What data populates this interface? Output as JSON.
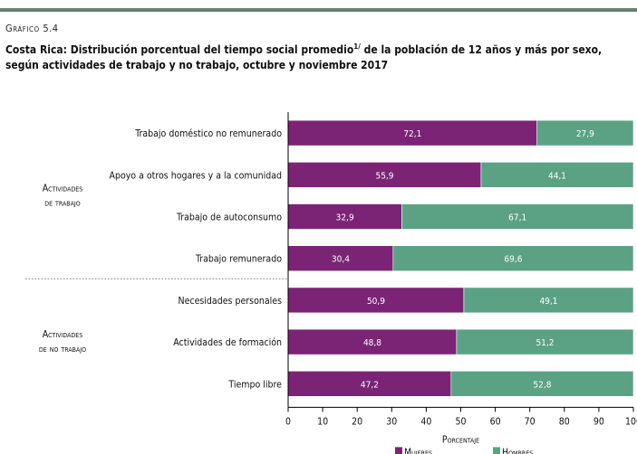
{
  "header": {
    "figure_label": "Gráfico 5.4",
    "title_main": "Costa Rica: Distribución porcentual del tiempo social promedio",
    "title_sup": "1/",
    "title_rest": " de la población de 12 años y más por sexo, según actividades de trabajo y no trabajo, octubre y noviembre 2017"
  },
  "colors": {
    "mujeres": "#7b2476",
    "hombres": "#5ba284",
    "accent_bar": "#6b7f73"
  },
  "chart_data": {
    "type": "bar",
    "orientation": "horizontal",
    "stacked": true,
    "categories": [
      "Trabajo doméstico no remunerado",
      "Apoyo a otros hogares y a la comunidad",
      "Trabajo de autoconsumo",
      "Trabajo remunerado",
      "Necesidades personales",
      "Actividades de formación",
      "Tiempo libre"
    ],
    "groups": [
      {
        "label_line1": "Actividades",
        "label_line2": "de trabajo",
        "categories": [
          0,
          1,
          2,
          3
        ]
      },
      {
        "label_line1": "Actividades",
        "label_line2": "de no trabajo",
        "categories": [
          4,
          5,
          6
        ]
      }
    ],
    "series": [
      {
        "name": "Mujeres",
        "values": [
          72.1,
          55.9,
          32.9,
          30.4,
          50.9,
          48.8,
          47.2
        ],
        "labels": [
          "72,1",
          "55,9",
          "32,9",
          "30,4",
          "50,9",
          "48,8",
          "47,2"
        ]
      },
      {
        "name": "Hombres",
        "values": [
          27.9,
          44.1,
          67.1,
          69.6,
          49.1,
          51.2,
          52.8
        ],
        "labels": [
          "27,9",
          "44,1",
          "67,1",
          "69,6",
          "49,1",
          "51,2",
          "52,8"
        ]
      }
    ],
    "xlabel": "Porcentaje",
    "xlim": [
      0,
      100
    ],
    "xticks": [
      0,
      10,
      20,
      30,
      40,
      50,
      60,
      70,
      80,
      90,
      100
    ],
    "legend_position": "bottom"
  }
}
